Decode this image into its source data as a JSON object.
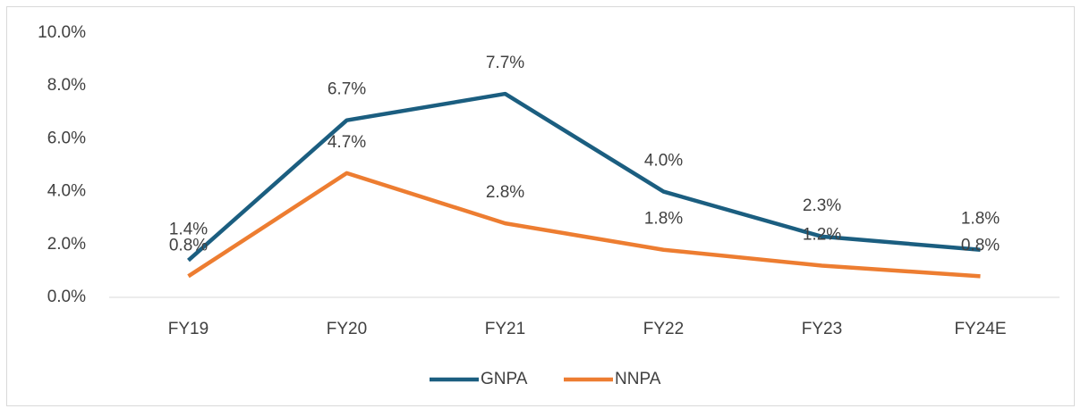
{
  "chart_data": {
    "type": "line",
    "categories": [
      "FY19",
      "FY20",
      "FY21",
      "FY22",
      "FY23",
      "FY24E"
    ],
    "series": [
      {
        "name": "GNPA",
        "color": "#1b5e80",
        "values": [
          1.4,
          6.7,
          7.7,
          4.0,
          2.3,
          1.8
        ],
        "value_labels": [
          "1.4%",
          "6.7%",
          "7.7%",
          "4.0%",
          "2.3%",
          "1.8%"
        ]
      },
      {
        "name": "NNPA",
        "color": "#ed7d31",
        "values": [
          0.8,
          4.7,
          2.8,
          1.8,
          1.2,
          0.8
        ],
        "value_labels": [
          "0.8%",
          "4.7%",
          "2.8%",
          "1.8%",
          "1.2%",
          "0.8%"
        ]
      }
    ],
    "ylim": [
      0,
      10
    ],
    "yticks": [
      {
        "value": 0,
        "label": "0.0%"
      },
      {
        "value": 2,
        "label": "2.0%"
      },
      {
        "value": 4,
        "label": "4.0%"
      },
      {
        "value": 6,
        "label": "6.0%"
      },
      {
        "value": 8,
        "label": "8.0%"
      },
      {
        "value": 10,
        "label": "10.0%"
      }
    ],
    "grid": false,
    "legend": "bottom"
  }
}
